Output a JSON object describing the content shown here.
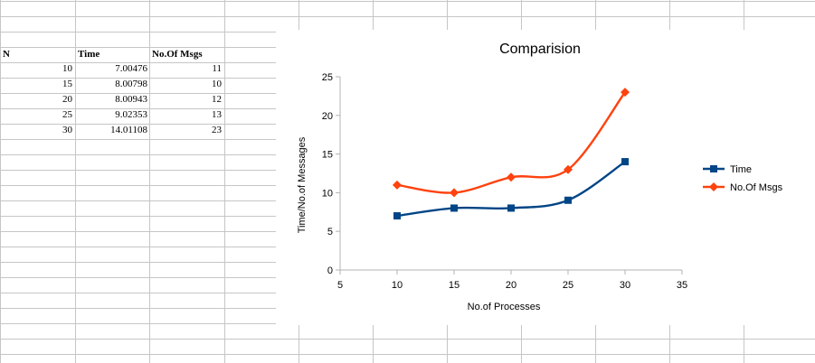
{
  "sheet": {
    "headers": [
      "N",
      "Time",
      "No.Of Msgs"
    ],
    "rows": [
      [
        "10",
        "7.00476",
        "11"
      ],
      [
        "15",
        "8.00798",
        "10"
      ],
      [
        "20",
        "8.00943",
        "12"
      ],
      [
        "25",
        "9.02353",
        "13"
      ],
      [
        "30",
        "14.01108",
        "23"
      ]
    ]
  },
  "chart_data": {
    "type": "line",
    "title": "Comparision",
    "xlabel": "No.of Processes",
    "ylabel": "Time/No.of Messages",
    "x": [
      10,
      15,
      20,
      25,
      30
    ],
    "xlim": [
      5,
      35
    ],
    "ylim": [
      0,
      25
    ],
    "xticks": [
      "5",
      "10",
      "15",
      "20",
      "25",
      "30",
      "35"
    ],
    "yticks": [
      "0",
      "5",
      "10",
      "15",
      "20",
      "25"
    ],
    "grid": false,
    "legend_position": "right",
    "series": [
      {
        "name": "Time",
        "values": [
          7.00476,
          8.00798,
          8.00943,
          9.02353,
          14.01108
        ],
        "color": "#004586",
        "marker": "square"
      },
      {
        "name": "No.Of Msgs",
        "values": [
          11,
          10,
          12,
          13,
          23
        ],
        "color": "#ff420e",
        "marker": "diamond"
      }
    ]
  }
}
